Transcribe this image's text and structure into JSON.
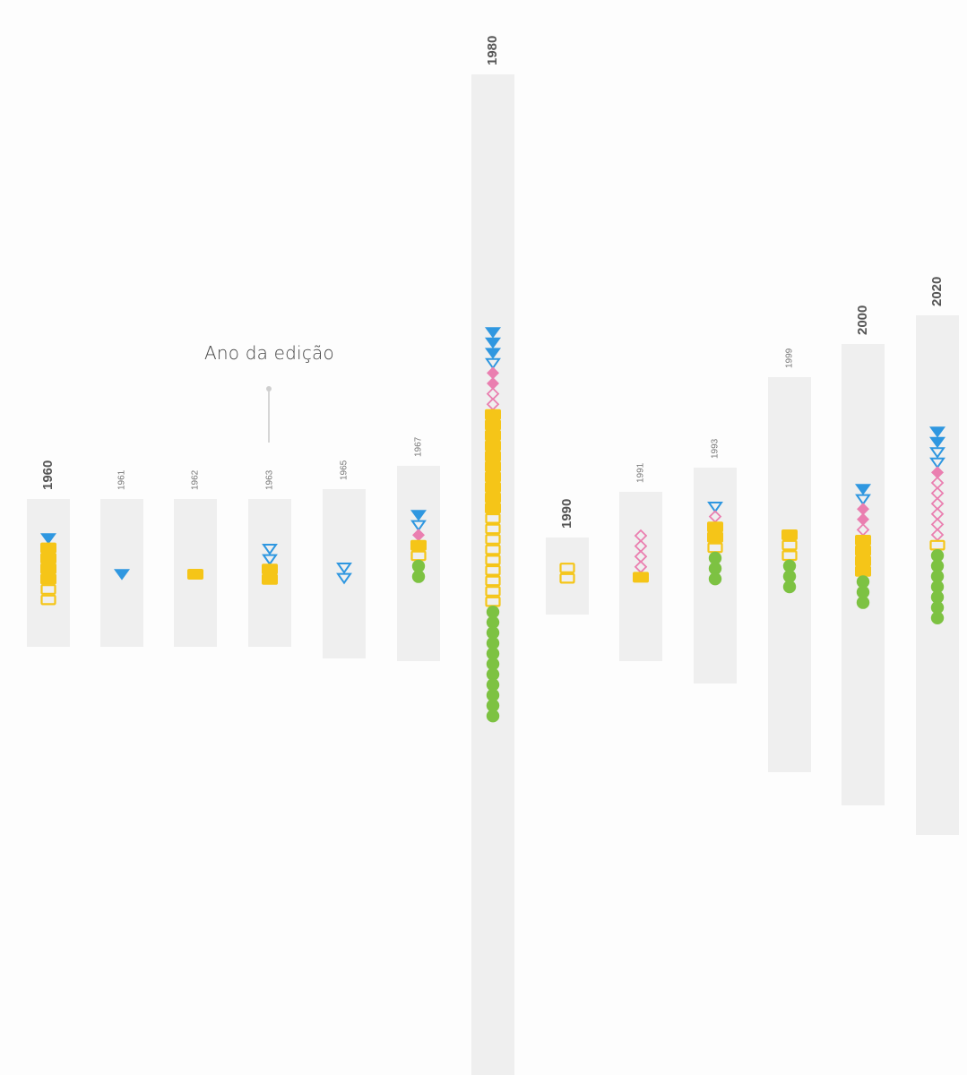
{
  "colors": {
    "background": "#fdfdfd",
    "column": "#efefef",
    "triangle": "#2f97e0",
    "diamond": "#ea7fb0",
    "square": "#f5c518",
    "circle": "#7dc242",
    "annotation": "#bdbdbd",
    "label": "#555555"
  },
  "annotation": {
    "label": "Ano da edição",
    "points_to": "1963"
  },
  "chart_data": {
    "type": "unit-column",
    "legend": [],
    "categories": [
      "1960",
      "1961",
      "1962",
      "1963",
      "1965",
      "1967",
      "1980",
      "1990",
      "1991",
      "1993",
      "1999",
      "2000",
      "2020"
    ],
    "emphasized_years": [
      "1960",
      "1980",
      "1990",
      "2000",
      "2020"
    ],
    "series": [
      {
        "year": "1960",
        "symbols": [
          {
            "shape": "triangle",
            "filled": true
          },
          {
            "shape": "square",
            "filled": true
          },
          {
            "shape": "square",
            "filled": true
          },
          {
            "shape": "square",
            "filled": true
          },
          {
            "shape": "square",
            "filled": true
          },
          {
            "shape": "square",
            "filled": false
          },
          {
            "shape": "square",
            "filled": false
          }
        ]
      },
      {
        "year": "1961",
        "symbols": [
          {
            "shape": "triangle",
            "filled": true
          }
        ]
      },
      {
        "year": "1962",
        "symbols": [
          {
            "shape": "square",
            "filled": true
          }
        ]
      },
      {
        "year": "1963",
        "symbols": [
          {
            "shape": "triangle",
            "filled": false
          },
          {
            "shape": "triangle",
            "filled": false
          },
          {
            "shape": "square",
            "filled": true
          },
          {
            "shape": "square",
            "filled": true
          }
        ]
      },
      {
        "year": "1965",
        "symbols": [
          {
            "shape": "triangle",
            "filled": false
          },
          {
            "shape": "triangle",
            "filled": false
          }
        ]
      },
      {
        "year": "1967",
        "symbols": [
          {
            "shape": "triangle",
            "filled": true
          },
          {
            "shape": "triangle",
            "filled": false
          },
          {
            "shape": "diamond",
            "filled": true
          },
          {
            "shape": "square",
            "filled": true
          },
          {
            "shape": "square",
            "filled": false
          },
          {
            "shape": "circle",
            "filled": true
          },
          {
            "shape": "circle",
            "filled": true
          }
        ]
      },
      {
        "year": "1980",
        "symbols": [
          {
            "shape": "triangle",
            "filled": true
          },
          {
            "shape": "triangle",
            "filled": true
          },
          {
            "shape": "triangle",
            "filled": true
          },
          {
            "shape": "triangle",
            "filled": false
          },
          {
            "shape": "diamond",
            "filled": true
          },
          {
            "shape": "diamond",
            "filled": true
          },
          {
            "shape": "diamond",
            "filled": false
          },
          {
            "shape": "diamond",
            "filled": false
          },
          {
            "shape": "square",
            "filled": true
          },
          {
            "shape": "square",
            "filled": true
          },
          {
            "shape": "square",
            "filled": true
          },
          {
            "shape": "square",
            "filled": true
          },
          {
            "shape": "square",
            "filled": true
          },
          {
            "shape": "square",
            "filled": true
          },
          {
            "shape": "square",
            "filled": true
          },
          {
            "shape": "square",
            "filled": true
          },
          {
            "shape": "square",
            "filled": true
          },
          {
            "shape": "square",
            "filled": true
          },
          {
            "shape": "square",
            "filled": false
          },
          {
            "shape": "square",
            "filled": false
          },
          {
            "shape": "square",
            "filled": false
          },
          {
            "shape": "square",
            "filled": false
          },
          {
            "shape": "square",
            "filled": false
          },
          {
            "shape": "square",
            "filled": false
          },
          {
            "shape": "square",
            "filled": false
          },
          {
            "shape": "square",
            "filled": false
          },
          {
            "shape": "square",
            "filled": false
          },
          {
            "shape": "circle",
            "filled": true
          },
          {
            "shape": "circle",
            "filled": true
          },
          {
            "shape": "circle",
            "filled": true
          },
          {
            "shape": "circle",
            "filled": true
          },
          {
            "shape": "circle",
            "filled": true
          },
          {
            "shape": "circle",
            "filled": true
          },
          {
            "shape": "circle",
            "filled": true
          },
          {
            "shape": "circle",
            "filled": true
          },
          {
            "shape": "circle",
            "filled": true
          },
          {
            "shape": "circle",
            "filled": true
          },
          {
            "shape": "circle",
            "filled": true
          }
        ]
      },
      {
        "year": "1990",
        "symbols": [
          {
            "shape": "square",
            "filled": false
          },
          {
            "shape": "square",
            "filled": false
          }
        ]
      },
      {
        "year": "1991",
        "symbols": [
          {
            "shape": "diamond",
            "filled": false
          },
          {
            "shape": "diamond",
            "filled": false
          },
          {
            "shape": "diamond",
            "filled": false
          },
          {
            "shape": "diamond",
            "filled": false
          },
          {
            "shape": "square",
            "filled": true
          }
        ]
      },
      {
        "year": "1993",
        "symbols": [
          {
            "shape": "triangle",
            "filled": false
          },
          {
            "shape": "diamond",
            "filled": false
          },
          {
            "shape": "square",
            "filled": true
          },
          {
            "shape": "square",
            "filled": true
          },
          {
            "shape": "square",
            "filled": false
          },
          {
            "shape": "circle",
            "filled": true
          },
          {
            "shape": "circle",
            "filled": true
          },
          {
            "shape": "circle",
            "filled": true
          }
        ]
      },
      {
        "year": "1999",
        "symbols": [
          {
            "shape": "square",
            "filled": true
          },
          {
            "shape": "square",
            "filled": false
          },
          {
            "shape": "square",
            "filled": false
          },
          {
            "shape": "circle",
            "filled": true
          },
          {
            "shape": "circle",
            "filled": true
          },
          {
            "shape": "circle",
            "filled": true
          }
        ]
      },
      {
        "year": "2000",
        "symbols": [
          {
            "shape": "triangle",
            "filled": true
          },
          {
            "shape": "triangle",
            "filled": false
          },
          {
            "shape": "diamond",
            "filled": true
          },
          {
            "shape": "diamond",
            "filled": true
          },
          {
            "shape": "diamond",
            "filled": false
          },
          {
            "shape": "square",
            "filled": true
          },
          {
            "shape": "square",
            "filled": true
          },
          {
            "shape": "square",
            "filled": true
          },
          {
            "shape": "square",
            "filled": true
          },
          {
            "shape": "circle",
            "filled": true
          },
          {
            "shape": "circle",
            "filled": true
          },
          {
            "shape": "circle",
            "filled": true
          }
        ]
      },
      {
        "year": "2020",
        "symbols": [
          {
            "shape": "triangle",
            "filled": true
          },
          {
            "shape": "triangle",
            "filled": true
          },
          {
            "shape": "triangle",
            "filled": false
          },
          {
            "shape": "triangle",
            "filled": false
          },
          {
            "shape": "diamond",
            "filled": true
          },
          {
            "shape": "diamond",
            "filled": false
          },
          {
            "shape": "diamond",
            "filled": false
          },
          {
            "shape": "diamond",
            "filled": false
          },
          {
            "shape": "diamond",
            "filled": false
          },
          {
            "shape": "diamond",
            "filled": false
          },
          {
            "shape": "diamond",
            "filled": false
          },
          {
            "shape": "square",
            "filled": false
          },
          {
            "shape": "circle",
            "filled": true
          },
          {
            "shape": "circle",
            "filled": true
          },
          {
            "shape": "circle",
            "filled": true
          },
          {
            "shape": "circle",
            "filled": true
          },
          {
            "shape": "circle",
            "filled": true
          },
          {
            "shape": "circle",
            "filled": true
          },
          {
            "shape": "circle",
            "filled": true
          }
        ]
      }
    ]
  }
}
